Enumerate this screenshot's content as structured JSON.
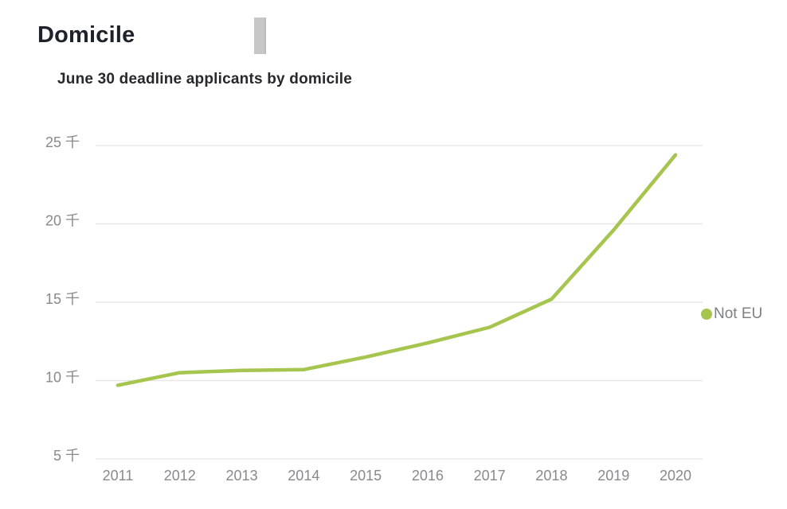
{
  "header": {
    "title": "Domicile",
    "subtitle": "June 30 deadline applicants by domicile"
  },
  "legend": {
    "items": [
      {
        "label": "Not EU",
        "color": "#a5c54e"
      }
    ]
  },
  "chart_data": {
    "type": "line",
    "title": "June 30 deadline applicants by domicile",
    "categories": [
      "2011",
      "2012",
      "2013",
      "2014",
      "2015",
      "2016",
      "2017",
      "2018",
      "2019",
      "2020"
    ],
    "series": [
      {
        "name": "Not EU",
        "color": "#a5c54e",
        "values": [
          9700,
          10500,
          10650,
          10700,
          11500,
          12400,
          13400,
          15200,
          19600,
          24400
        ]
      }
    ],
    "xlabel": "",
    "ylabel": "",
    "ylim": [
      5000,
      25000
    ],
    "y_ticks": [
      {
        "value": 25000,
        "label": "25 千"
      },
      {
        "value": 20000,
        "label": "20 千"
      },
      {
        "value": 15000,
        "label": "15 千"
      },
      {
        "value": 10000,
        "label": "10 千"
      },
      {
        "value": 5000,
        "label": "5 千"
      }
    ],
    "grid": true,
    "legend_position": "right",
    "grid_color": "#e7e7e9",
    "axis_label_color": "#87898c"
  }
}
